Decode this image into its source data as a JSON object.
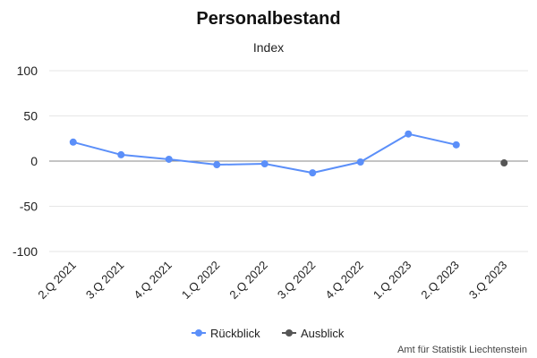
{
  "chart_data": {
    "type": "line",
    "title": "Personalbestand",
    "subtitle": "Index",
    "categories": [
      "2.Q 2021",
      "3.Q 2021",
      "4.Q 2021",
      "1.Q 2022",
      "2.Q 2022",
      "3.Q 2022",
      "4.Q 2022",
      "1.Q 2023",
      "2.Q 2023",
      "3.Q 2023"
    ],
    "ylim": [
      -100,
      100
    ],
    "yticks": [
      100,
      50,
      0,
      -50,
      -100
    ],
    "ytick_labels": [
      "100",
      "50",
      "0",
      "-50",
      "-100"
    ],
    "grid": true,
    "legend_position": "bottom",
    "series": [
      {
        "name": "Rückblick",
        "color": "#5b8ff9",
        "values": [
          21,
          7,
          2,
          -4,
          -3,
          -13,
          -1,
          30,
          18,
          null
        ]
      },
      {
        "name": "Ausblick",
        "color": "#555555",
        "values": [
          null,
          null,
          null,
          null,
          null,
          null,
          null,
          null,
          null,
          -2
        ]
      }
    ],
    "credits": "Amt für Statistik Liechtenstein"
  }
}
